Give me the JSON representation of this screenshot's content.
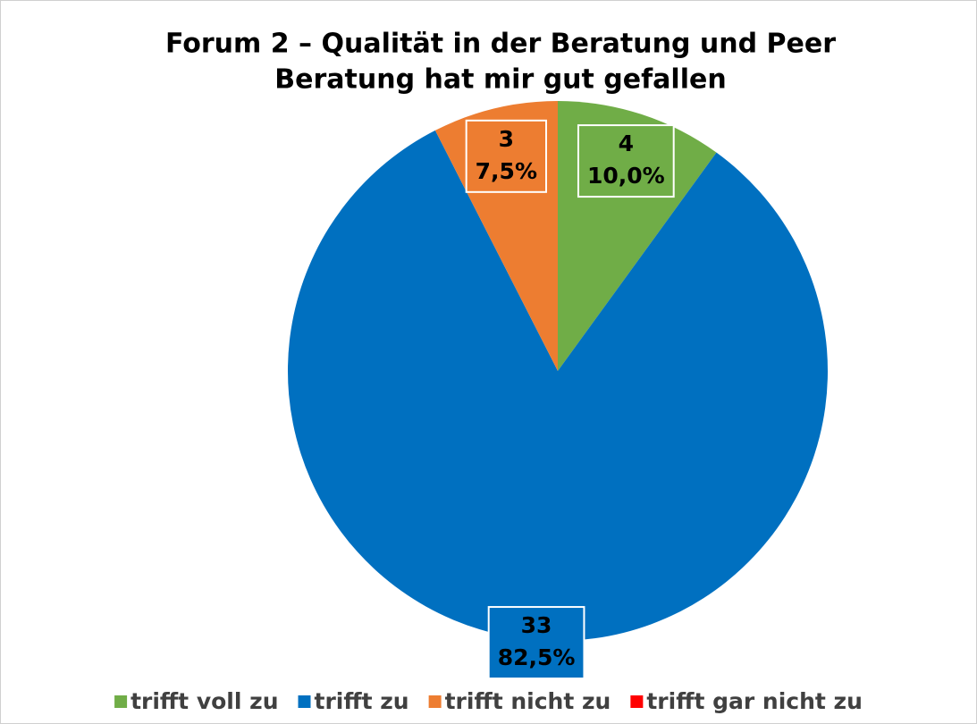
{
  "chart_data": {
    "type": "pie",
    "title": [
      "Forum 2 – Qualität in der Beratung und Peer",
      "Beratung hat mir gut gefallen"
    ],
    "categories": [
      "trifft voll zu",
      "trifft zu",
      "trifft nicht zu",
      "trifft gar nicht zu"
    ],
    "values": [
      4,
      33,
      3,
      0
    ],
    "percent_values": [
      10.0,
      82.5,
      7.5,
      0
    ],
    "percent_labels": [
      "10,0%",
      "82,5%",
      "7,5%",
      null
    ],
    "colors": [
      "#70ad47",
      "#0070c0",
      "#ed7d31",
      "#ff0000"
    ],
    "legend": "bottom"
  }
}
